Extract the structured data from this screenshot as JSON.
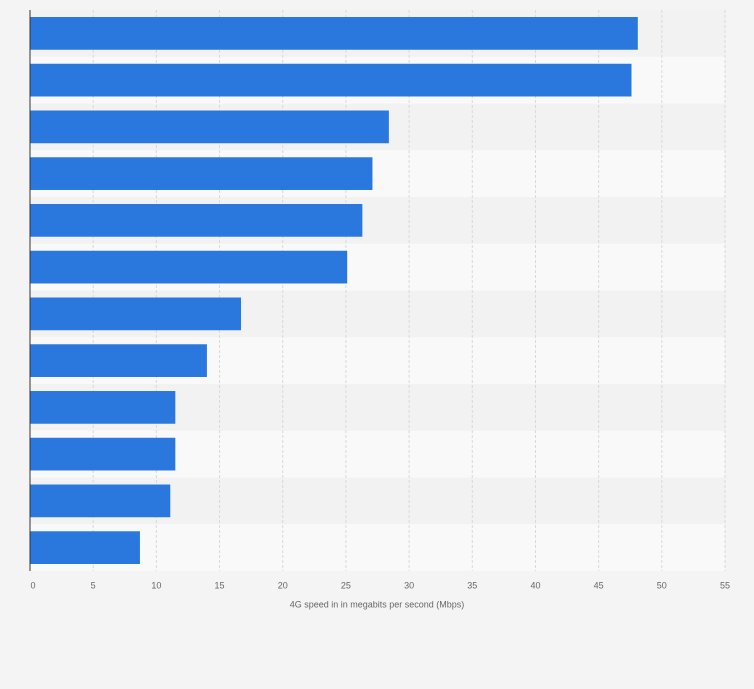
{
  "chart_data": {
    "type": "bar",
    "orientation": "horizontal",
    "categories": [
      null,
      null,
      null,
      null,
      null,
      null,
      null,
      null,
      null,
      null,
      null,
      null
    ],
    "values": [
      48.1,
      47.6,
      28.4,
      27.1,
      26.3,
      25.1,
      16.7,
      14.0,
      11.5,
      11.5,
      11.1,
      8.7
    ],
    "color": "#2a77dd",
    "xlabel": "4G speed in in megabits per second (Mbps)",
    "xlim": [
      0,
      55
    ],
    "xticks": [
      0,
      5,
      10,
      15,
      20,
      25,
      30,
      35,
      40,
      45,
      50,
      55
    ],
    "grid": true
  }
}
